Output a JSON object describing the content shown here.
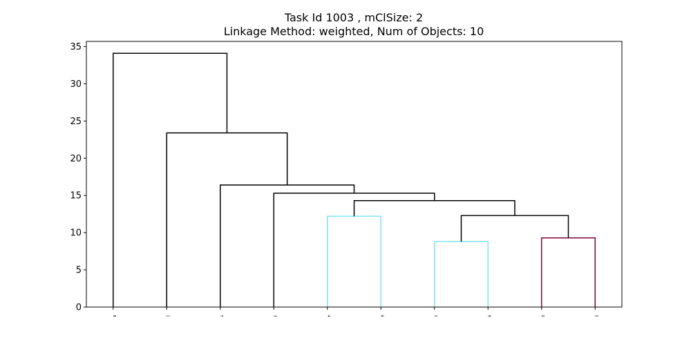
{
  "chart_data": {
    "type": "dendrogram",
    "title_lines": [
      "Task Id 1003 , mClSize: 2",
      "Linkage Method: weighted, Num of Objects: 10"
    ],
    "xlabel": "",
    "ylabel": "",
    "ylim": [
      0,
      35.7
    ],
    "yticks": [
      0,
      5,
      10,
      15,
      20,
      25,
      30,
      35
    ],
    "grid": false,
    "leaves": [
      "8",
      "1",
      "7",
      "3",
      "4",
      "6",
      "2",
      "9",
      "0",
      "5"
    ],
    "merges": [
      {
        "left": 4,
        "right": 5,
        "height": 12.2,
        "color": "#7ee2f7"
      },
      {
        "left": 6,
        "right": 7,
        "height": 8.8,
        "color": "#7ee2f7"
      },
      {
        "left": 8,
        "right": 9,
        "height": 9.3,
        "color": "#800040"
      },
      {
        "left": "m2",
        "right": "m3",
        "height": 12.3,
        "color": "#000000"
      },
      {
        "left": "m1",
        "right": "m4",
        "height": 14.3,
        "color": "#000000"
      },
      {
        "left": 3,
        "right": "m5",
        "height": 15.3,
        "color": "#000000"
      },
      {
        "left": 2,
        "right": "m6",
        "height": 16.4,
        "color": "#000000"
      },
      {
        "left": 1,
        "right": "m7",
        "height": 23.4,
        "color": "#000000"
      },
      {
        "left": 0,
        "right": "m8",
        "height": 34.1,
        "color": "#000000"
      }
    ]
  }
}
